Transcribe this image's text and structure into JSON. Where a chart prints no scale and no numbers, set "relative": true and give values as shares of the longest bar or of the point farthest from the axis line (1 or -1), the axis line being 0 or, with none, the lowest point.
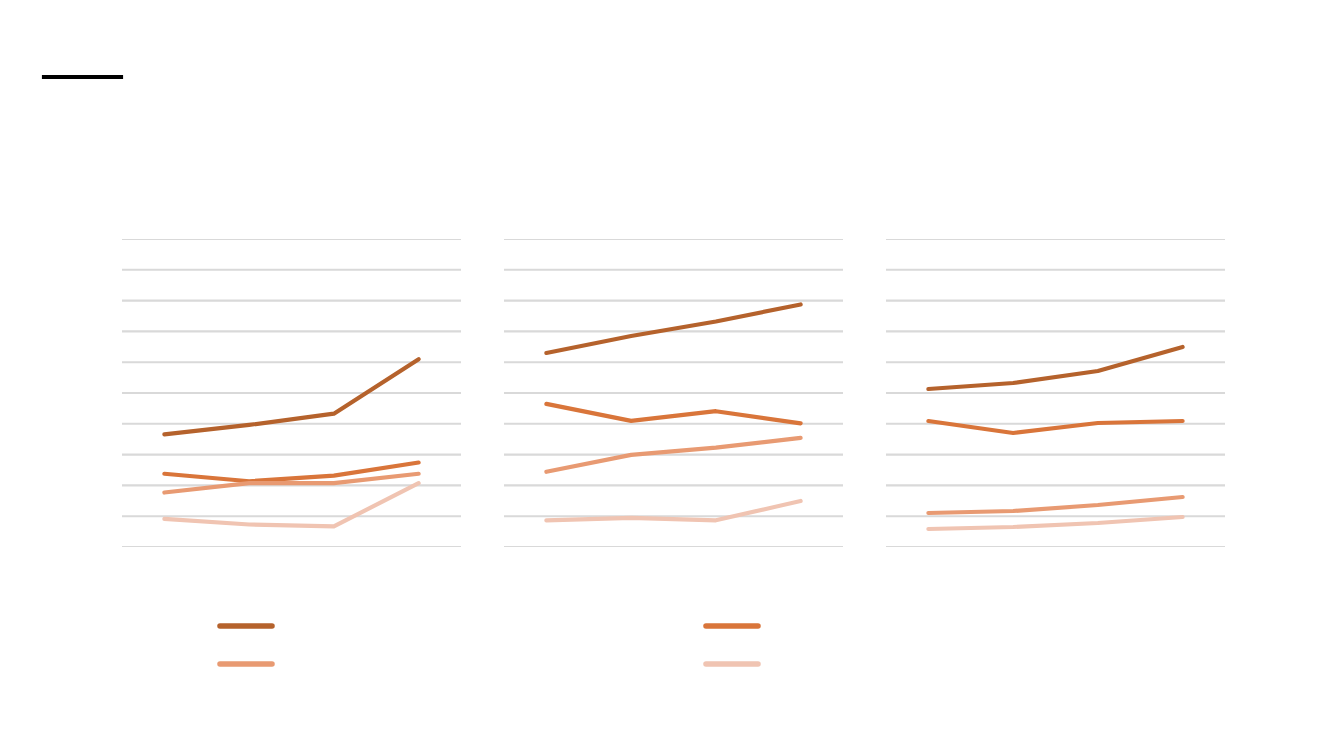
{
  "chart_data": [
    {
      "type": "line",
      "relative": true,
      "categories": [
        null,
        null,
        null,
        null
      ],
      "series": [
        {
          "color": "#b5622c",
          "values": [
            0.6,
            0.65,
            0.71,
            1
          ]
        },
        {
          "color": "#d9753a",
          "values": [
            0.39,
            0.35,
            0.38,
            0.45
          ]
        },
        {
          "color": "#e89a72",
          "values": [
            0.29,
            0.34,
            0.34,
            0.39
          ]
        },
        {
          "color": "#f0c4b2",
          "values": [
            0.15,
            0.12,
            0.11,
            0.34
          ]
        }
      ],
      "ylim": [
        0,
        1.64
      ],
      "grid": "y",
      "marker": "none",
      "line_style": "solid"
    },
    {
      "type": "line",
      "relative": true,
      "categories": [
        null,
        null,
        null,
        null
      ],
      "series": [
        {
          "color": "#b5622c",
          "values": [
            0.8,
            0.87,
            0.93,
            1
          ]
        },
        {
          "color": "#d9753a",
          "values": [
            0.59,
            0.52,
            0.56,
            0.51
          ]
        },
        {
          "color": "#e89a72",
          "values": [
            0.31,
            0.38,
            0.41,
            0.45
          ]
        },
        {
          "color": "#f0c4b2",
          "values": [
            0.11,
            0.12,
            0.11,
            0.19
          ]
        }
      ],
      "ylim": [
        0,
        1.27
      ],
      "grid": "y",
      "marker": "none",
      "line_style": "solid"
    },
    {
      "type": "line",
      "relative": true,
      "categories": [
        null,
        null,
        null,
        null
      ],
      "series": [
        {
          "color": "#b5622c",
          "values": [
            0.79,
            0.82,
            0.88,
            1
          ]
        },
        {
          "color": "#d9753a",
          "values": [
            0.63,
            0.57,
            0.62,
            0.63
          ]
        },
        {
          "color": "#e89a72",
          "values": [
            0.17,
            0.18,
            0.21,
            0.25
          ]
        },
        {
          "color": "#f0c4b2",
          "values": [
            0.09,
            0.1,
            0.12,
            0.15
          ]
        }
      ],
      "ylim": [
        0,
        1.54
      ],
      "grid": "y",
      "marker": "none",
      "line_style": "solid"
    }
  ]
}
